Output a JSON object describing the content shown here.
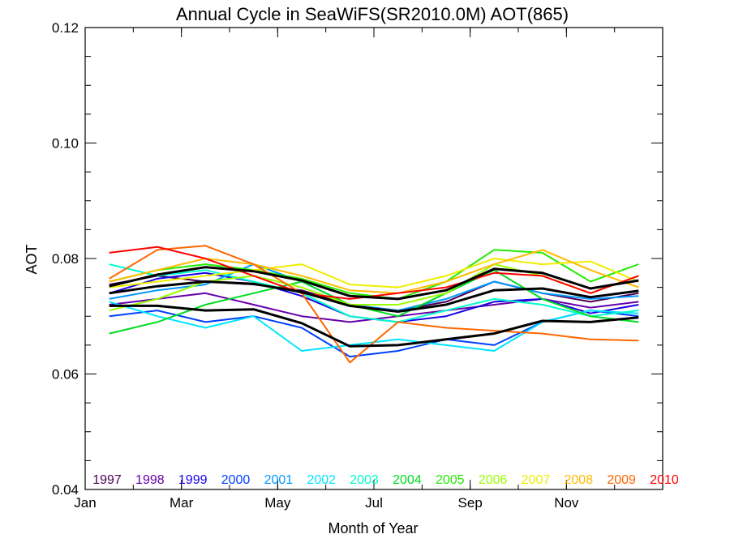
{
  "chart_data": {
    "type": "line",
    "title": "Annual Cycle in SeaWiFS(SR2010.0M) AOT(865)",
    "xlabel": "Month of Year",
    "ylabel": "AOT",
    "xlim": [
      1,
      13
    ],
    "ylim": [
      0.04,
      0.12
    ],
    "x_ticks": [
      {
        "value": 1,
        "label": "Jan"
      },
      {
        "value": 3,
        "label": "Mar"
      },
      {
        "value": 5,
        "label": "May"
      },
      {
        "value": 7,
        "label": "Jul"
      },
      {
        "value": 9,
        "label": "Sep"
      },
      {
        "value": 11,
        "label": "Nov"
      }
    ],
    "y_ticks": [
      {
        "value": 0.04,
        "label": "0.04"
      },
      {
        "value": 0.06,
        "label": "0.06"
      },
      {
        "value": 0.08,
        "label": "0.08"
      },
      {
        "value": 0.1,
        "label": "0.10"
      },
      {
        "value": 0.12,
        "label": "0.12"
      }
    ],
    "legend_position": "bottom",
    "x": [
      1.5,
      2.5,
      3.5,
      4.5,
      5.5,
      6.5,
      7.5,
      8.5,
      9.5,
      10.5,
      11.5,
      12.5
    ],
    "series": [
      {
        "name": "1997",
        "color": "#4b0055",
        "values": [
          0.0755,
          0.077,
          0.076,
          0.0755,
          0.0745,
          0.072,
          0.071,
          0.0725,
          0.076,
          0.074,
          0.0725,
          0.074
        ]
      },
      {
        "name": "1998",
        "color": "#6600aa",
        "values": [
          0.072,
          0.073,
          0.074,
          0.072,
          0.07,
          0.069,
          0.07,
          0.071,
          0.072,
          0.073,
          0.0715,
          0.0725
        ]
      },
      {
        "name": "1999",
        "color": "#1a00e6",
        "values": [
          0.074,
          0.0765,
          0.0775,
          0.076,
          0.0735,
          0.07,
          0.069,
          0.07,
          0.0725,
          0.073,
          0.0705,
          0.072
        ]
      },
      {
        "name": "2000",
        "color": "#0040ff",
        "values": [
          0.07,
          0.071,
          0.069,
          0.07,
          0.068,
          0.063,
          0.064,
          0.066,
          0.065,
          0.069,
          0.071,
          0.07
        ]
      },
      {
        "name": "2001",
        "color": "#0099ff",
        "values": [
          0.073,
          0.0745,
          0.0755,
          0.079,
          0.076,
          0.072,
          0.071,
          0.073,
          0.076,
          0.074,
          0.073,
          0.0735
        ]
      },
      {
        "name": "2002",
        "color": "#00e5ff",
        "values": [
          0.0725,
          0.07,
          0.068,
          0.07,
          0.064,
          0.065,
          0.066,
          0.065,
          0.064,
          0.069,
          0.071,
          0.0705
        ]
      },
      {
        "name": "2003",
        "color": "#00ffcc",
        "values": [
          0.079,
          0.077,
          0.078,
          0.076,
          0.074,
          0.07,
          0.069,
          0.071,
          0.073,
          0.072,
          0.07,
          0.071
        ]
      },
      {
        "name": "2004",
        "color": "#00dd22",
        "values": [
          0.067,
          0.069,
          0.072,
          0.074,
          0.076,
          0.072,
          0.07,
          0.074,
          0.078,
          0.073,
          0.07,
          0.069
        ]
      },
      {
        "name": "2005",
        "color": "#22ee00",
        "values": [
          0.076,
          0.078,
          0.079,
          0.078,
          0.0765,
          0.074,
          0.073,
          0.076,
          0.0815,
          0.081,
          0.076,
          0.079
        ]
      },
      {
        "name": "2006",
        "color": "#99ff00",
        "values": [
          0.071,
          0.073,
          0.076,
          0.077,
          0.075,
          0.072,
          0.072,
          0.074,
          0.079,
          0.077,
          0.074,
          0.077
        ]
      },
      {
        "name": "2007",
        "color": "#eeee00",
        "values": [
          0.075,
          0.076,
          0.077,
          0.078,
          0.079,
          0.0755,
          0.075,
          0.077,
          0.08,
          0.079,
          0.0795,
          0.076
        ]
      },
      {
        "name": "2008",
        "color": "#ffbb00",
        "values": [
          0.076,
          0.078,
          0.08,
          0.079,
          0.077,
          0.0745,
          0.074,
          0.076,
          0.079,
          0.0815,
          0.078,
          0.075
        ]
      },
      {
        "name": "2009",
        "color": "#ff6600",
        "values": [
          0.0765,
          0.0815,
          0.0822,
          0.079,
          0.074,
          0.062,
          0.069,
          0.068,
          0.0675,
          0.067,
          0.066,
          0.0658
        ]
      },
      {
        "name": "2010",
        "color": "#ff0000",
        "values": [
          0.081,
          0.082,
          0.08,
          0.077,
          0.074,
          0.073,
          0.074,
          0.075,
          0.0775,
          0.077,
          0.074,
          0.077
        ]
      }
    ],
    "summary_lines": [
      {
        "color": "#000000",
        "values": [
          0.0752,
          0.0772,
          0.0785,
          0.0778,
          0.0762,
          0.0735,
          0.073,
          0.0745,
          0.0782,
          0.0775,
          0.0748,
          0.0762
        ]
      },
      {
        "color": "#000000",
        "values": [
          0.074,
          0.0752,
          0.076,
          0.0756,
          0.0742,
          0.0718,
          0.0708,
          0.072,
          0.0745,
          0.0748,
          0.0733,
          0.0744
        ]
      },
      {
        "color": "#000000",
        "values": [
          0.0718,
          0.0718,
          0.071,
          0.0712,
          0.0688,
          0.0648,
          0.065,
          0.066,
          0.067,
          0.0692,
          0.069,
          0.0698
        ]
      }
    ]
  }
}
